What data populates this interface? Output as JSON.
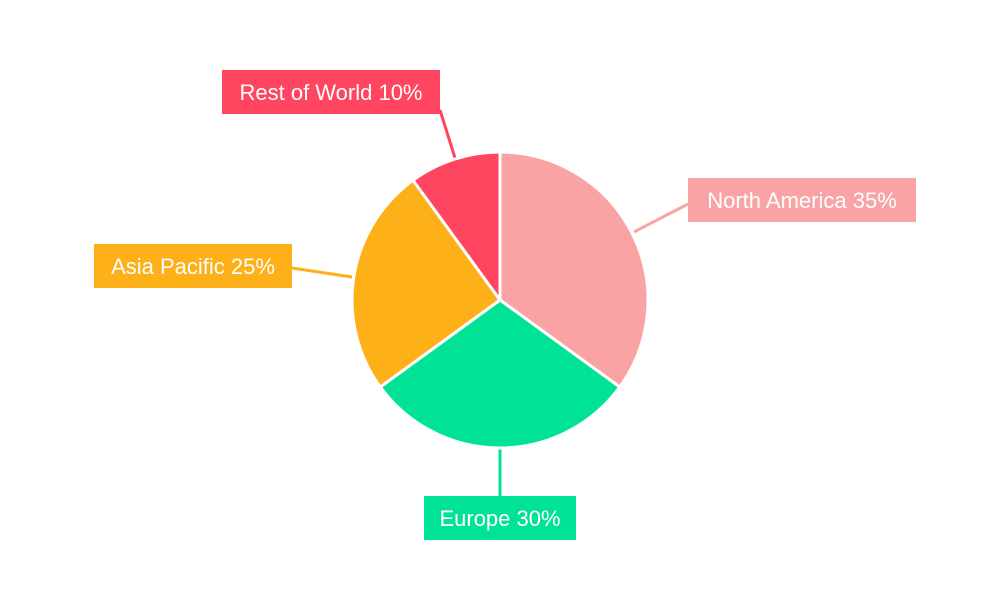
{
  "chart_data": {
    "type": "pie",
    "title": "",
    "slices": [
      {
        "name": "North America",
        "value": 35,
        "label": "North America 35%",
        "color": "#f9a3a4"
      },
      {
        "name": "Europe",
        "value": 30,
        "label": "Europe 30%",
        "color": "#00e396"
      },
      {
        "name": "Asia Pacific",
        "value": 25,
        "label": "Asia Pacific 25%",
        "color": "#feb019"
      },
      {
        "name": "Rest of World",
        "value": 10,
        "label": "Rest of World 10%",
        "color": "#ff4560"
      }
    ],
    "start_angle": "12 o'clock",
    "direction": "clockwise"
  }
}
